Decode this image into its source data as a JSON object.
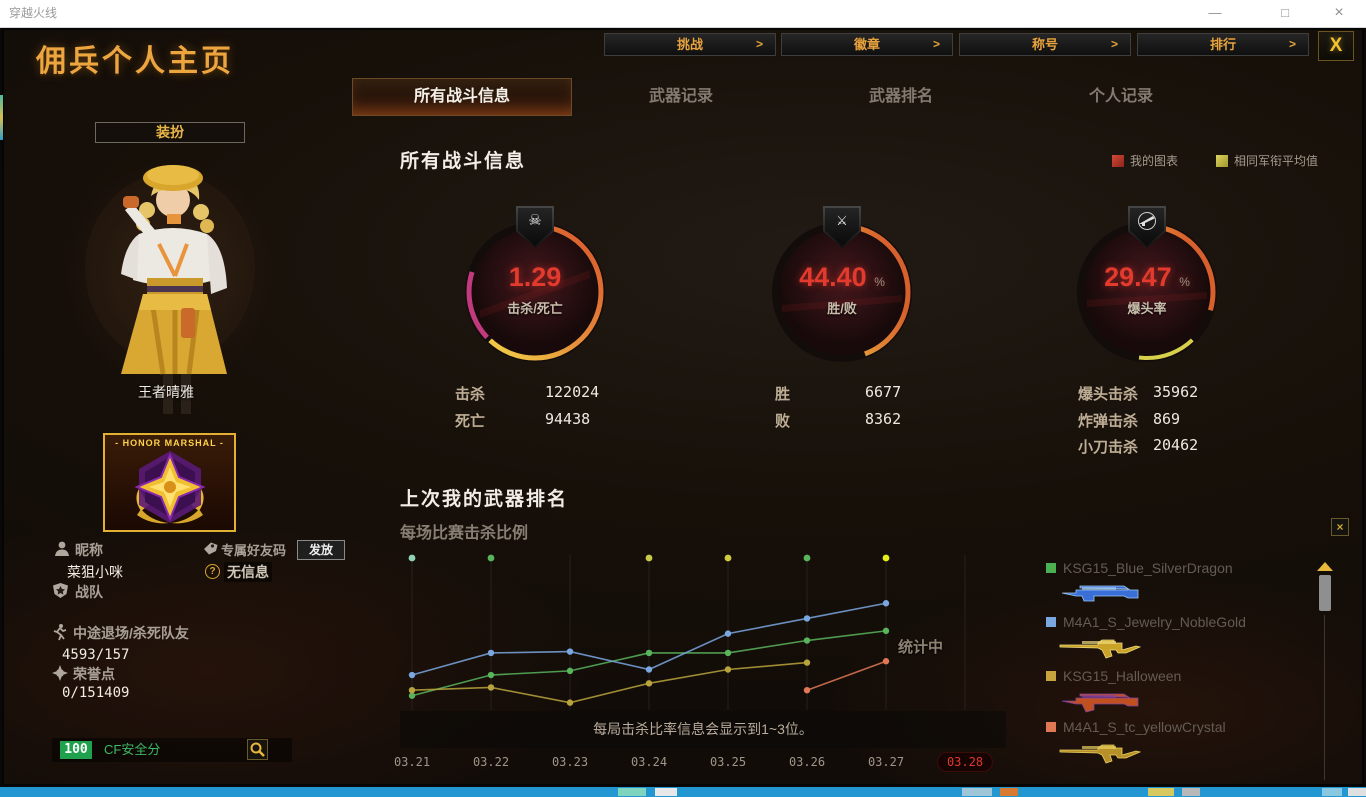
{
  "window": {
    "title": "穿越火线",
    "minimize": "—",
    "maximize": "□",
    "close": "×"
  },
  "nav": {
    "arrow": ">",
    "buttons": [
      {
        "label": "挑战"
      },
      {
        "label": "徽章"
      },
      {
        "label": "称号"
      },
      {
        "label": "排行"
      }
    ],
    "close_label": "X"
  },
  "page": {
    "title": "佣兵个人主页"
  },
  "tabs": [
    {
      "label": "所有战斗信息",
      "active": true
    },
    {
      "label": "武器记录",
      "active": false
    },
    {
      "label": "武器排名",
      "active": false
    },
    {
      "label": "个人记录",
      "active": false
    }
  ],
  "sidebar": {
    "dress_button": "装扮",
    "character_name": "王者晴雅",
    "badge_title": "- HONOR MARSHAL -",
    "nickname_label": "昵称",
    "nickname": "菜狙小咪",
    "friend_code_label": "专属好友码",
    "friend_code_button": "发放",
    "question_mark": "?",
    "no_info": "无信息",
    "clan_label": "战队",
    "quit_label": "中途退场/杀死队友",
    "quit_value": "4593/157",
    "honor_label": "荣誉点",
    "honor_value": "0/151409",
    "safety_score": "100",
    "safety_label": "CF安全分"
  },
  "combat": {
    "heading": "所有战斗信息",
    "legend": [
      {
        "label": "我的图表",
        "color": "#b5342c"
      },
      {
        "label": "相同军衔平均值",
        "color": "#c8bd4a"
      }
    ],
    "gauges": [
      {
        "value": "1.29",
        "unit": "",
        "label": "击杀/死亡",
        "icon": "skull-crossbones",
        "percent": 62,
        "arc2": {
          "from": 63,
          "to": 80,
          "color": "#c23a7d"
        }
      },
      {
        "value": "44.40",
        "unit": "%",
        "label": "胜/败",
        "icon": "crossed-rifles",
        "percent": 44.4
      },
      {
        "value": "29.47",
        "unit": "%",
        "label": "爆头率",
        "icon": "rifle",
        "percent": 29.5,
        "arc2": {
          "from": 38,
          "to": 52,
          "color": "#d8cf4a"
        }
      }
    ],
    "stats": [
      {
        "rows": [
          {
            "label": "击杀",
            "value": "122024"
          },
          {
            "label": "死亡",
            "value": "94438"
          }
        ]
      },
      {
        "rows": [
          {
            "label": "胜",
            "value": "6677"
          },
          {
            "label": "败",
            "value": "8362"
          }
        ]
      },
      {
        "rows": [
          {
            "label": "爆头击杀",
            "value": "35962"
          },
          {
            "label": "炸弹击杀",
            "value": "869"
          },
          {
            "label": "小刀击杀",
            "value": "20462"
          }
        ]
      }
    ]
  },
  "weapon_section": {
    "heading": "上次我的武器排名",
    "subheading": "每场比赛击杀比例"
  },
  "chart_data": {
    "type": "line",
    "title": "每场比赛击杀比例",
    "x": [
      "03.21",
      "03.22",
      "03.23",
      "03.24",
      "03.25",
      "03.26",
      "03.27",
      "03.28"
    ],
    "x_highlight": "03.28",
    "ylim": [
      0,
      100
    ],
    "grid": "vertical",
    "legend_position": "right-panel",
    "series": [
      {
        "name": "KSG15_Blue_SilverDragon",
        "color": "#58b55c",
        "values": [
          6,
          21,
          24,
          37,
          37,
          46,
          53,
          null
        ]
      },
      {
        "name": "M4A1_S_Jewelry_NobleGold",
        "color": "#7aa7e0",
        "values": [
          21,
          37,
          38,
          25,
          51,
          62,
          73,
          null
        ]
      },
      {
        "name": "KSG15_Halloween",
        "color": "#b8a43c",
        "values": [
          10,
          12,
          1,
          15,
          25,
          30,
          null,
          null
        ]
      },
      {
        "name": "M4A1_S_tc_yellowCrystal",
        "color": "#e07856",
        "values": [
          null,
          null,
          null,
          null,
          null,
          10,
          31,
          null
        ]
      }
    ],
    "top_markers": [
      {
        "x_index": 0,
        "color": "#8fd4b0"
      },
      {
        "x_index": 1,
        "color": "#58b55c"
      },
      {
        "x_index": 3,
        "color": "#c9c94a"
      },
      {
        "x_index": 4,
        "color": "#d0cc40"
      },
      {
        "x_index": 5,
        "color": "#58b55c"
      },
      {
        "x_index": 6,
        "color": "#e6ef1a"
      }
    ],
    "annotation": "统计中",
    "note": "每局击杀比率信息会显示到1~3位。"
  },
  "weapon_panel": {
    "items": [
      {
        "name": "KSG15_Blue_SilverDragon",
        "swatch": "#4caf50",
        "thumb": "#3a6fd8",
        "thumb2": "#9fc8f0"
      },
      {
        "name": "M4A1_S_Jewelry_NobleGold",
        "swatch": "#7aa7e0",
        "thumb": "#c9a227",
        "thumb2": "#f0dc80"
      },
      {
        "name": "KSG15_Halloween",
        "swatch": "#c8a43e",
        "thumb": "#c05020",
        "thumb2": "#8040a0"
      },
      {
        "name": "M4A1_S_tc_yellowCrystal",
        "swatch": "#e07856",
        "thumb": "#b8902a",
        "thumb2": "#e8d060"
      }
    ]
  }
}
